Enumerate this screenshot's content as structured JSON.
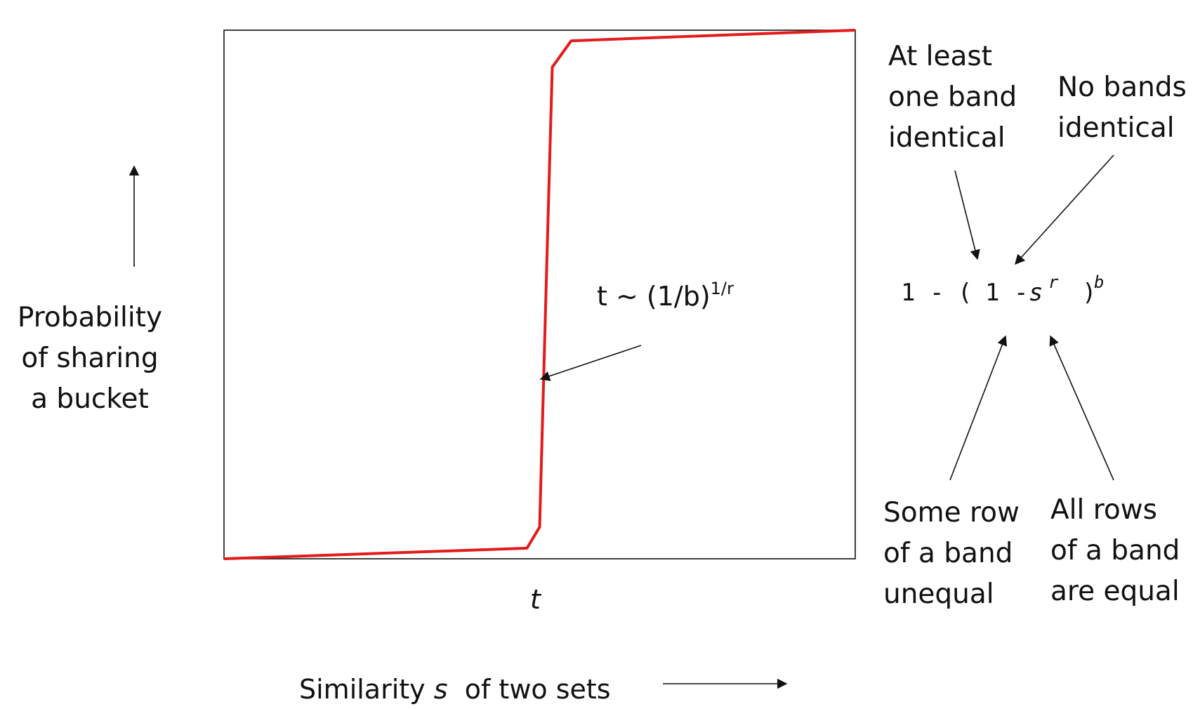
{
  "y_axis": {
    "label_lines": [
      "Probability",
      "of sharing",
      "a bucket"
    ]
  },
  "x_axis": {
    "label_pre": "Similarity ",
    "label_var": "s",
    "label_post": "  of two sets",
    "threshold_tick": "t"
  },
  "threshold_annotation": {
    "text": "t ~ (1/b)",
    "exponent": "1/r"
  },
  "formula": {
    "one_minus": "1 -",
    "open_paren": "(",
    "inner_one_minus": "1 -",
    "var_s": "s",
    "exp_r": "r",
    "close_paren": ")",
    "exp_b": "b"
  },
  "callouts": {
    "at_least_one": [
      "At least",
      "one band",
      "identical"
    ],
    "no_bands": [
      "No bands",
      "identical"
    ],
    "some_row": [
      "Some row",
      "of a band",
      "unequal"
    ],
    "all_rows": [
      "All rows",
      "of a band",
      "are equal"
    ]
  },
  "chart_data": {
    "type": "line",
    "series": [
      {
        "x": [
          0.0,
          0.48,
          0.5,
          0.51,
          0.52,
          0.55,
          1.0
        ],
        "y": [
          0.0,
          0.02,
          0.06,
          0.5,
          0.93,
          0.98,
          1.0
        ]
      }
    ],
    "xlim": [
      0,
      1
    ],
    "ylim": [
      0,
      1
    ],
    "grid": false,
    "colors": {
      "curve": "#e31b1b",
      "frame": "#111111"
    }
  }
}
